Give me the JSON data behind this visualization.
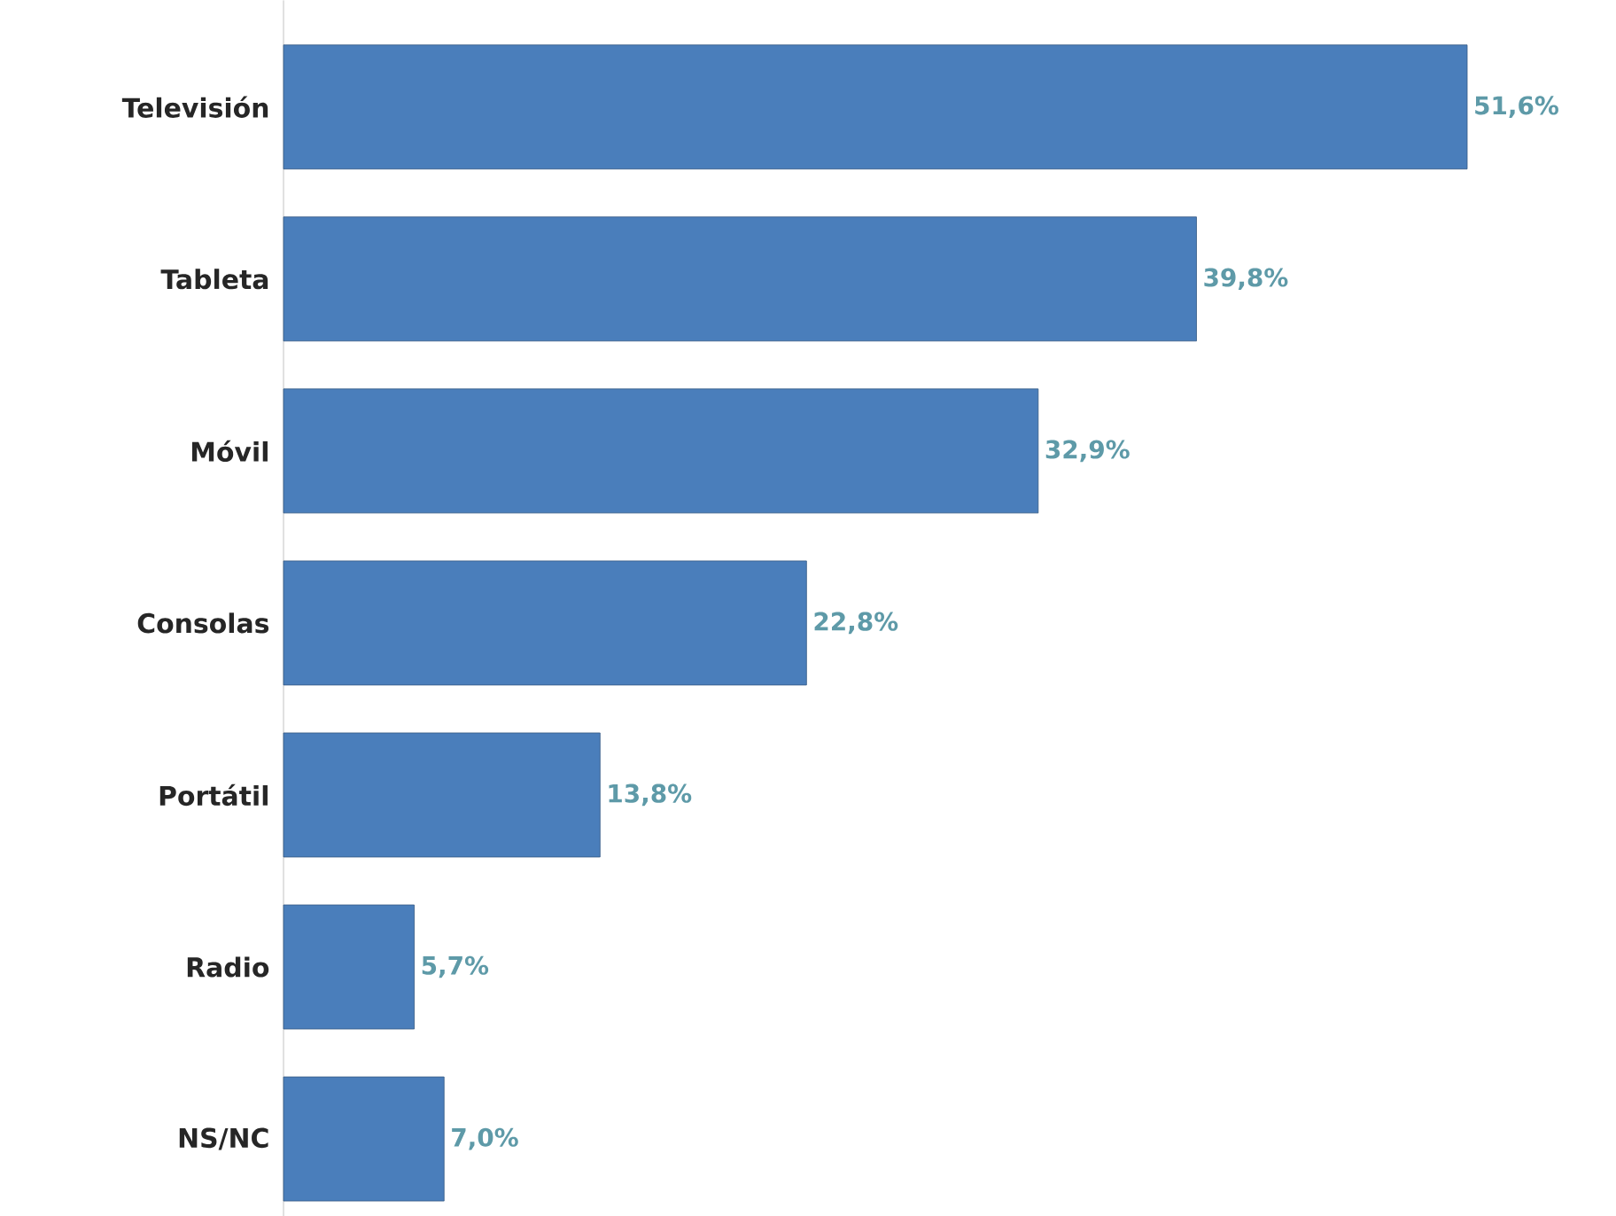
{
  "chart_data": {
    "type": "bar",
    "orientation": "horizontal",
    "categories": [
      "Televisión",
      "Tableta",
      "Móvil",
      "Consolas",
      "Portátil",
      "Radio",
      "NS/NC"
    ],
    "values": [
      51.6,
      39.8,
      32.9,
      22.8,
      13.8,
      5.7,
      7.0
    ],
    "value_labels": [
      "51,6%",
      "39,8%",
      "32,9%",
      "22,8%",
      "13,8%",
      "5,7%",
      "7,0%"
    ],
    "color": "#4a7ebb",
    "xlim": [
      0,
      51.6
    ]
  }
}
